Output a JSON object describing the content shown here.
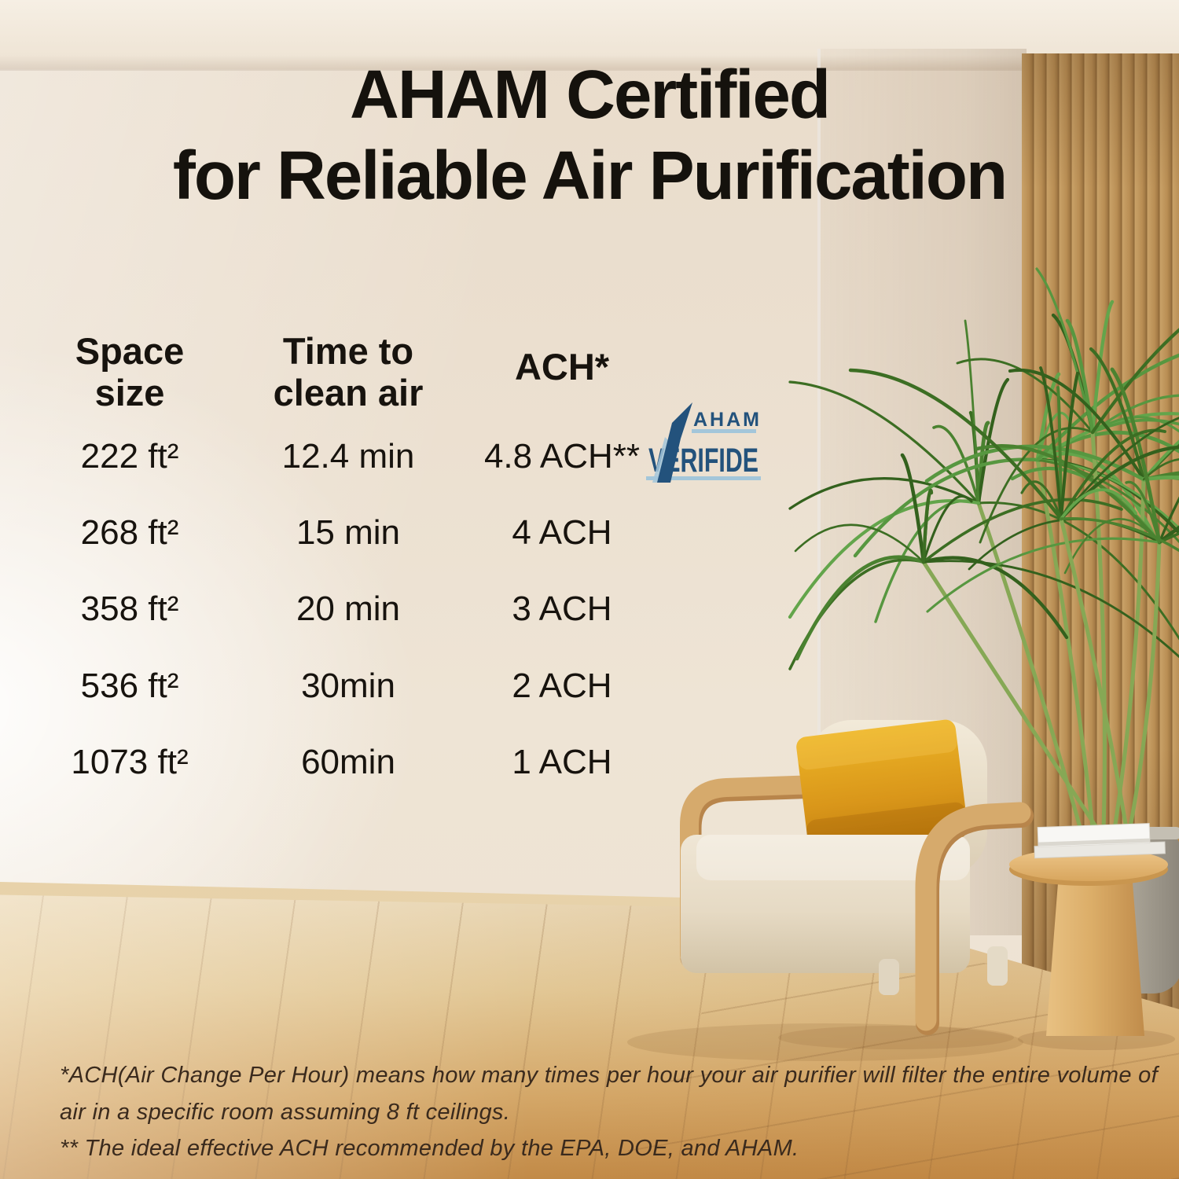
{
  "title": {
    "line1": "AHAM Certified",
    "line2": "for Reliable Air Purification"
  },
  "table": {
    "headers": [
      {
        "line1": "Space",
        "line2": "size"
      },
      {
        "line1": "Time to",
        "line2": "clean air"
      },
      {
        "line1": "ACH*",
        "line2": ""
      }
    ],
    "rows": [
      {
        "space": "222 ft²",
        "time": "12.4 min",
        "ach": "4.8 ACH**"
      },
      {
        "space": "268 ft²",
        "time": "15 min",
        "ach": "4 ACH"
      },
      {
        "space": "358 ft²",
        "time": "20 min",
        "ach": "3 ACH"
      },
      {
        "space": "536 ft²",
        "time": "30min",
        "ach": "2 ACH"
      },
      {
        "space": "1073 ft²",
        "time": "60min",
        "ach": "1 ACH"
      }
    ]
  },
  "badge": {
    "brand": "AHAM",
    "label": "VERIFIDE"
  },
  "footnotes": [
    "*ACH(Air Change Per Hour) means how many times per hour your air purifier will filter the entire volume of",
    "air in a specific room assuming 8 ft ceilings.",
    "** The ideal effective ACH recommended by the EPA, DOE, and AHAM."
  ],
  "colors": {
    "navy": "#23527c",
    "lightblue": "#a3c6da",
    "pillow": "#d9991b",
    "wood": "#d6aa6c",
    "leaf": "#4a8230",
    "wall": "#ece1d2",
    "floor": "#d8ae71"
  }
}
